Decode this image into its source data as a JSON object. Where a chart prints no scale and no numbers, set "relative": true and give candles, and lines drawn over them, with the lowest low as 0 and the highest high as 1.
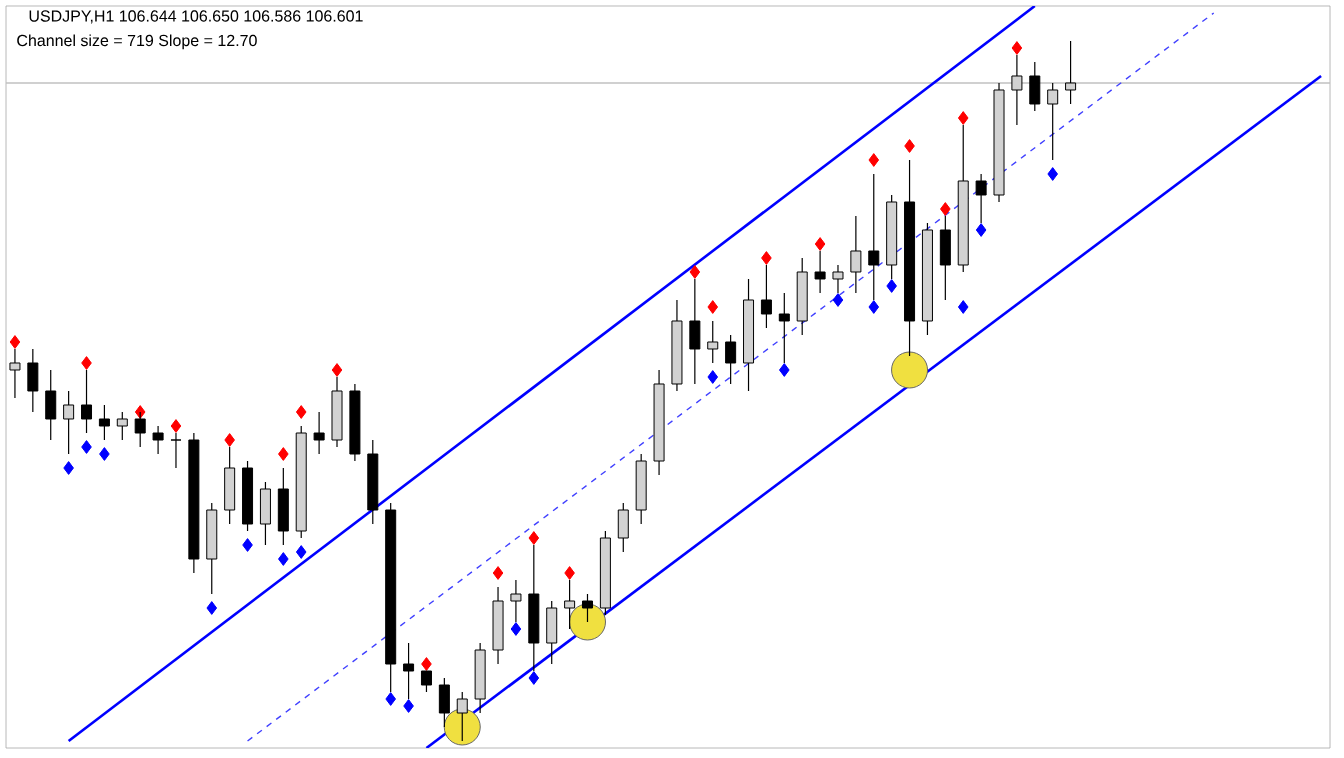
{
  "chart_data": {
    "type": "candlestick",
    "title": "USDJPY,H1 106.644 106.650 106.586 106.601",
    "subtitle": "Channel size = 719 Slope = 12.70",
    "relative": true,
    "tick_labels": false,
    "categories": [
      null,
      null,
      null,
      null,
      null,
      null,
      null,
      null,
      null,
      null,
      null,
      null,
      null,
      null,
      null,
      null,
      null,
      null,
      null,
      null,
      null,
      null,
      null,
      null,
      null,
      null,
      null,
      null,
      null,
      null,
      null,
      null,
      null,
      null,
      null,
      null,
      null,
      null,
      null,
      null,
      null,
      null,
      null,
      null,
      null,
      null,
      null,
      null,
      null,
      null,
      null,
      null,
      null,
      null,
      null,
      null,
      null,
      null,
      null,
      null,
      null,
      null,
      null,
      null,
      null,
      null,
      null,
      null,
      null,
      null,
      null,
      null,
      null,
      null
    ],
    "ohlc": [
      [
        0.53,
        0.56,
        0.49,
        0.54
      ],
      [
        0.54,
        0.56,
        0.47,
        0.5
      ],
      [
        0.5,
        0.53,
        0.43,
        0.46
      ],
      [
        0.46,
        0.5,
        0.41,
        0.48
      ],
      [
        0.48,
        0.53,
        0.44,
        0.46
      ],
      [
        0.46,
        0.48,
        0.43,
        0.45
      ],
      [
        0.45,
        0.47,
        0.43,
        0.46
      ],
      [
        0.46,
        0.47,
        0.42,
        0.44
      ],
      [
        0.44,
        0.45,
        0.41,
        0.43
      ],
      [
        0.43,
        0.44,
        0.39,
        0.43
      ],
      [
        0.43,
        0.44,
        0.24,
        0.26
      ],
      [
        0.26,
        0.34,
        0.21,
        0.33
      ],
      [
        0.33,
        0.42,
        0.31,
        0.39
      ],
      [
        0.39,
        0.4,
        0.3,
        0.31
      ],
      [
        0.31,
        0.37,
        0.28,
        0.36
      ],
      [
        0.36,
        0.39,
        0.28,
        0.3
      ],
      [
        0.3,
        0.45,
        0.29,
        0.44
      ],
      [
        0.44,
        0.47,
        0.41,
        0.43
      ],
      [
        0.43,
        0.52,
        0.42,
        0.5
      ],
      [
        0.5,
        0.51,
        0.4,
        0.41
      ],
      [
        0.41,
        0.43,
        0.31,
        0.33
      ],
      [
        0.33,
        0.34,
        0.07,
        0.11
      ],
      [
        0.11,
        0.14,
        0.06,
        0.1
      ],
      [
        0.1,
        0.1,
        0.07,
        0.08
      ],
      [
        0.08,
        0.09,
        0.02,
        0.04
      ],
      [
        0.04,
        0.07,
        0,
        0.06
      ],
      [
        0.06,
        0.14,
        0.04,
        0.13
      ],
      [
        0.13,
        0.22,
        0.11,
        0.2
      ],
      [
        0.2,
        0.23,
        0.17,
        0.21
      ],
      [
        0.21,
        0.28,
        0.1,
        0.14
      ],
      [
        0.14,
        0.2,
        0.11,
        0.19
      ],
      [
        0.19,
        0.23,
        0.16,
        0.2
      ],
      [
        0.2,
        0.21,
        0.17,
        0.19
      ],
      [
        0.19,
        0.3,
        0.18,
        0.29
      ],
      [
        0.29,
        0.34,
        0.27,
        0.33
      ],
      [
        0.33,
        0.41,
        0.31,
        0.4
      ],
      [
        0.4,
        0.53,
        0.38,
        0.51
      ],
      [
        0.51,
        0.63,
        0.5,
        0.6
      ],
      [
        0.6,
        0.66,
        0.51,
        0.56
      ],
      [
        0.56,
        0.6,
        0.54,
        0.57
      ],
      [
        0.57,
        0.58,
        0.51,
        0.54
      ],
      [
        0.54,
        0.66,
        0.5,
        0.63
      ],
      [
        0.63,
        0.68,
        0.59,
        0.61
      ],
      [
        0.61,
        0.64,
        0.54,
        0.6
      ],
      [
        0.6,
        0.69,
        0.58,
        0.67
      ],
      [
        0.67,
        0.7,
        0.64,
        0.66
      ],
      [
        0.66,
        0.68,
        0.64,
        0.67
      ],
      [
        0.67,
        0.75,
        0.64,
        0.7
      ],
      [
        0.7,
        0.81,
        0.63,
        0.68
      ],
      [
        0.68,
        0.78,
        0.66,
        0.77
      ],
      [
        0.77,
        0.83,
        0.55,
        0.6
      ],
      [
        0.6,
        0.74,
        0.58,
        0.73
      ],
      [
        0.73,
        0.75,
        0.63,
        0.68
      ],
      [
        0.68,
        0.88,
        0.67,
        0.8
      ],
      [
        0.8,
        0.81,
        0.74,
        0.78
      ],
      [
        0.78,
        0.94,
        0.77,
        0.93
      ],
      [
        0.93,
        0.98,
        0.88,
        0.95
      ],
      [
        0.95,
        0.97,
        0.9,
        0.91
      ],
      [
        0.91,
        0.94,
        0.83,
        0.93
      ],
      [
        0.93,
        1,
        0.91,
        0.94
      ],
      null,
      null,
      null,
      null,
      null,
      null,
      null,
      null,
      null,
      null,
      null,
      null,
      null,
      null
    ],
    "series": [
      {
        "type": "line",
        "color": "#0000ff",
        "line_style": "solid",
        "values": [
          null,
          null,
          null,
          0,
          null,
          null,
          null,
          null,
          null,
          null,
          null,
          null,
          null,
          null,
          null,
          null,
          null,
          null,
          null,
          null,
          null,
          null,
          null,
          null,
          null,
          null,
          null,
          null,
          null,
          null,
          null,
          null,
          null,
          null,
          null,
          null,
          null,
          null,
          null,
          null,
          null,
          null,
          null,
          null,
          null,
          null,
          null,
          null,
          null,
          null,
          null,
          null,
          null,
          null,
          null,
          null,
          null,
          1.05,
          null,
          null,
          null,
          null,
          null,
          null,
          null,
          null,
          null,
          null,
          null,
          null,
          null,
          null,
          null,
          null
        ]
      },
      {
        "type": "line",
        "color": "#4040ff",
        "line_style": "dashed",
        "values": [
          null,
          null,
          null,
          null,
          null,
          null,
          null,
          null,
          null,
          null,
          null,
          null,
          null,
          0,
          null,
          null,
          null,
          null,
          null,
          null,
          null,
          null,
          null,
          null,
          null,
          null,
          null,
          null,
          null,
          null,
          null,
          null,
          null,
          null,
          null,
          null,
          null,
          null,
          null,
          null,
          null,
          null,
          null,
          null,
          null,
          null,
          null,
          null,
          null,
          null,
          null,
          null,
          null,
          null,
          null,
          null,
          null,
          null,
          null,
          null,
          null,
          null,
          null,
          null,
          null,
          null,
          null,
          1.04,
          null,
          null,
          null,
          null,
          null,
          null
        ]
      },
      {
        "type": "line",
        "color": "#0000ff",
        "line_style": "solid",
        "values": [
          null,
          null,
          null,
          null,
          null,
          null,
          null,
          null,
          null,
          null,
          null,
          null,
          null,
          null,
          null,
          null,
          null,
          null,
          null,
          null,
          null,
          null,
          null,
          -0.01,
          null,
          null,
          null,
          null,
          null,
          null,
          null,
          null,
          null,
          null,
          null,
          null,
          null,
          null,
          null,
          null,
          null,
          null,
          null,
          null,
          null,
          null,
          null,
          null,
          null,
          null,
          null,
          null,
          null,
          null,
          null,
          null,
          null,
          null,
          null,
          null,
          null,
          null,
          null,
          null,
          null,
          null,
          null,
          null,
          null,
          null,
          null,
          null,
          null,
          0.95
        ]
      },
      {
        "type": "scatter",
        "marker": "diamond",
        "color": "#ff0000",
        "values": [
          0.57,
          null,
          null,
          null,
          0.54,
          null,
          null,
          0.47,
          null,
          0.45,
          null,
          null,
          0.43,
          null,
          null,
          0.41,
          0.47,
          null,
          0.53,
          null,
          null,
          null,
          null,
          0.11,
          null,
          null,
          null,
          0.24,
          null,
          0.29,
          null,
          0.24,
          null,
          null,
          null,
          null,
          null,
          null,
          0.67,
          0.62,
          null,
          null,
          0.69,
          null,
          null,
          0.71,
          null,
          null,
          0.83,
          null,
          0.85,
          null,
          0.76,
          0.89,
          null,
          null,
          0.99,
          null,
          null,
          null,
          null,
          null,
          null,
          null,
          null,
          null,
          null,
          null,
          null,
          null,
          null,
          null,
          null,
          null
        ]
      },
      {
        "type": "scatter",
        "marker": "diamond",
        "color": "#0000ff",
        "values": [
          null,
          null,
          null,
          0.39,
          0.42,
          0.41,
          null,
          null,
          null,
          null,
          null,
          0.19,
          null,
          0.28,
          null,
          0.26,
          0.27,
          null,
          null,
          null,
          null,
          0.06,
          0.05,
          null,
          null,
          null,
          null,
          null,
          0.16,
          0.09,
          null,
          null,
          null,
          null,
          null,
          null,
          null,
          null,
          null,
          0.52,
          null,
          null,
          null,
          0.53,
          null,
          null,
          0.63,
          null,
          0.62,
          0.65,
          null,
          null,
          null,
          0.62,
          0.73,
          null,
          null,
          null,
          0.81,
          null,
          null,
          null,
          null,
          null,
          null,
          null,
          null,
          null,
          null,
          null,
          null,
          null,
          null,
          null
        ]
      },
      {
        "type": "scatter",
        "marker": "circle",
        "color": "#f0e040",
        "values": [
          null,
          null,
          null,
          null,
          null,
          null,
          null,
          null,
          null,
          null,
          null,
          null,
          null,
          null,
          null,
          null,
          null,
          null,
          null,
          null,
          null,
          null,
          null,
          null,
          null,
          0.02,
          null,
          null,
          null,
          null,
          null,
          null,
          0.17,
          null,
          null,
          null,
          null,
          null,
          null,
          null,
          null,
          null,
          null,
          null,
          null,
          null,
          null,
          null,
          null,
          null,
          0.53,
          null,
          null,
          null,
          null,
          null,
          null,
          null,
          null,
          null,
          null,
          null,
          null,
          null,
          null,
          null,
          null,
          null,
          null,
          null,
          null,
          null,
          null,
          null
        ]
      }
    ],
    "ref_lines": [
      {
        "axis": "y",
        "value": 0.94,
        "color": "#c0c0c0"
      }
    ]
  }
}
